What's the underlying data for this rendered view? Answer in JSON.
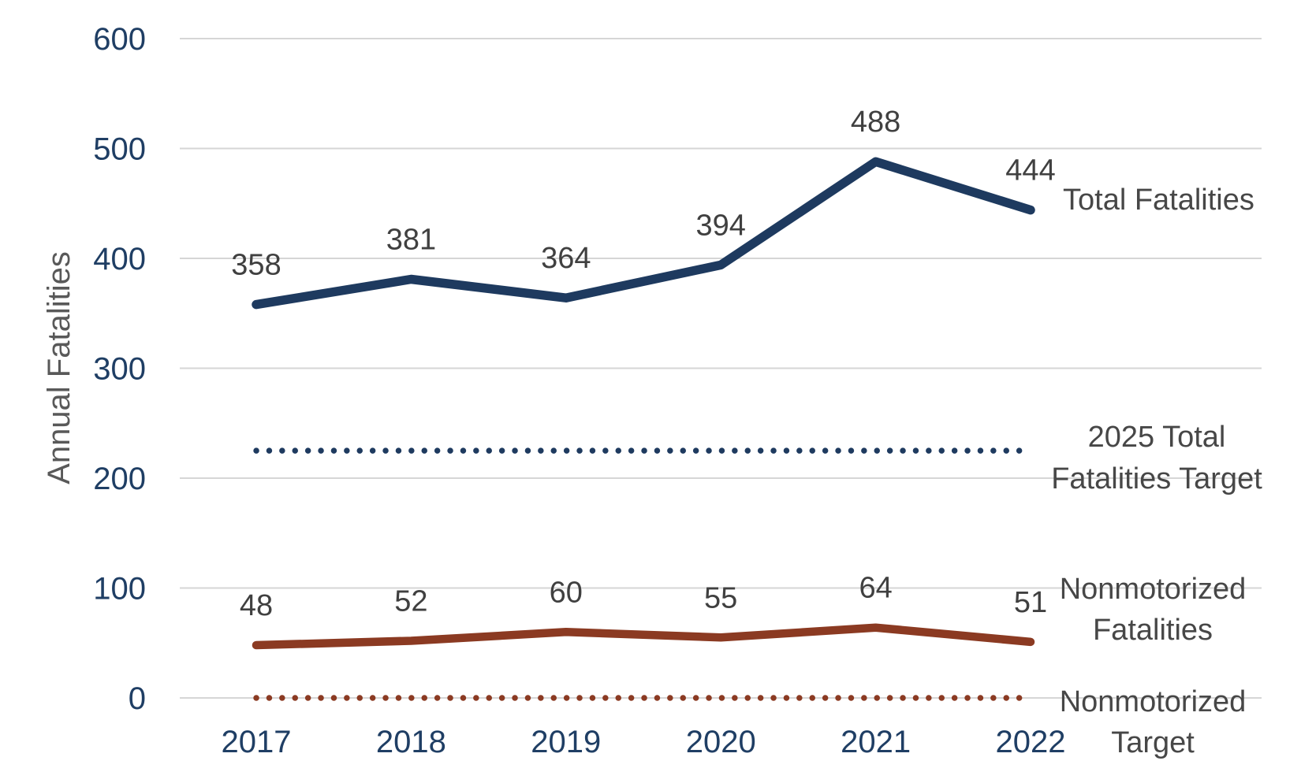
{
  "chart_data": {
    "type": "line",
    "title": "",
    "xlabel": "",
    "ylabel": "Annual Fatalities",
    "categories": [
      "2017",
      "2018",
      "2019",
      "2020",
      "2021",
      "2022"
    ],
    "y_ticks": [
      0,
      100,
      200,
      300,
      400,
      500,
      600
    ],
    "ylim": [
      0,
      600
    ],
    "grid": true,
    "legend_position": "right-inline",
    "series": [
      {
        "name": "Total Fatalities",
        "label_lines": [
          "Total Fatalities"
        ],
        "values": [
          358,
          381,
          364,
          394,
          488,
          444
        ],
        "style": "solid",
        "color": "#1e3a5f",
        "show_data_labels": true
      },
      {
        "name": "2025 Total Fatalities Target",
        "label_lines": [
          "2025 Total",
          "Fatalities Target"
        ],
        "values": [
          225,
          225,
          225,
          225,
          225,
          225
        ],
        "style": "dotted",
        "color": "#1e3a5f",
        "show_data_labels": false
      },
      {
        "name": "Nonmotorized Fatalities",
        "label_lines": [
          "Nonmotorized",
          "Fatalities"
        ],
        "values": [
          48,
          52,
          60,
          55,
          64,
          51
        ],
        "style": "solid",
        "color": "#8b3a22",
        "show_data_labels": true
      },
      {
        "name": "Nonmotorized Target",
        "label_lines": [
          "Nonmotorized",
          "Target"
        ],
        "values": [
          0,
          0,
          0,
          0,
          0,
          0
        ],
        "style": "dotted",
        "color": "#8b3a22",
        "show_data_labels": false
      }
    ],
    "colors": {
      "total_fatalities_line": "#1e3a5f",
      "nonmotorized_line": "#8b3a22",
      "gridline": "#d6d6d6",
      "tick_label": "#1f3e64",
      "data_label": "#404040",
      "series_label": "#474747",
      "axis_title": "#595959",
      "background": "#ffffff"
    }
  }
}
